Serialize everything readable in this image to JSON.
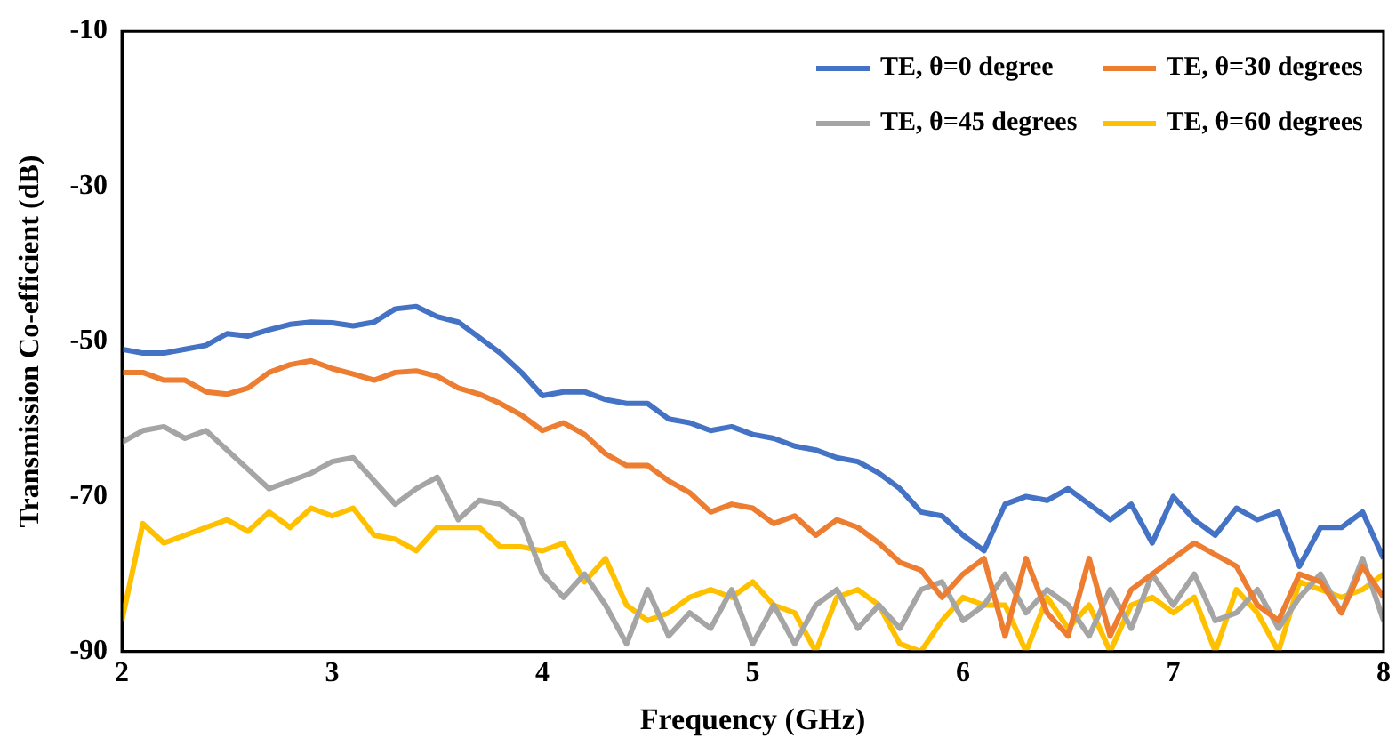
{
  "chart_data": {
    "type": "line",
    "xlabel": "Frequency (GHz)",
    "ylabel": "Transmission Co-efficient (dB)",
    "x": [
      2.0,
      2.1,
      2.2,
      2.3,
      2.4,
      2.5,
      2.6,
      2.7,
      2.8,
      2.9,
      3.0,
      3.1,
      3.2,
      3.3,
      3.4,
      3.5,
      3.6,
      3.7,
      3.8,
      3.9,
      4.0,
      4.1,
      4.2,
      4.3,
      4.4,
      4.5,
      4.6,
      4.7,
      4.8,
      4.9,
      5.0,
      5.1,
      5.2,
      5.3,
      5.4,
      5.5,
      5.6,
      5.7,
      5.8,
      5.9,
      6.0,
      6.1,
      6.2,
      6.3,
      6.4,
      6.5,
      6.6,
      6.7,
      6.8,
      6.9,
      7.0,
      7.1,
      7.2,
      7.3,
      7.4,
      7.5,
      7.6,
      7.7,
      7.8,
      7.9,
      8.0
    ],
    "series": [
      {
        "name": "TE, θ=0 degree",
        "color": "#4472c4",
        "values": [
          -51,
          -51.5,
          -51.5,
          -51,
          -50.5,
          -49,
          -49.3,
          -48.5,
          -47.8,
          -47.5,
          -47.6,
          -48,
          -47.5,
          -45.8,
          -45.5,
          -46.8,
          -47.5,
          -49.5,
          -51.5,
          -54,
          -57,
          -56.5,
          -56.5,
          -57.5,
          -58,
          -58,
          -60,
          -60.5,
          -61.5,
          -61,
          -62,
          -62.5,
          -63.5,
          -64,
          -65,
          -65.5,
          -67,
          -69,
          -72,
          -72.5,
          -75,
          -77,
          -71,
          -70,
          -70.5,
          -69,
          -71,
          -73,
          -71,
          -76,
          -70,
          -73,
          -75,
          -71.5,
          -73,
          -72,
          -79,
          -74,
          -74,
          -72,
          -78
        ]
      },
      {
        "name": "TE, θ=30 degrees",
        "color": "#ed7d31",
        "values": [
          -54,
          -54,
          -55,
          -55,
          -56.5,
          -56.8,
          -56,
          -54,
          -53,
          -52.5,
          -53.5,
          -54.2,
          -55,
          -54,
          -53.8,
          -54.5,
          -56,
          -56.8,
          -58,
          -59.5,
          -61.5,
          -60.5,
          -62,
          -64.5,
          -66,
          -66,
          -68,
          -69.5,
          -72,
          -71,
          -71.5,
          -73.5,
          -72.5,
          -75,
          -73,
          -74,
          -76,
          -78.5,
          -79.5,
          -83,
          -80,
          -78,
          -88,
          -78,
          -85,
          -88,
          -78,
          -88,
          -82,
          -80,
          -78,
          -76,
          -77.5,
          -79,
          -84,
          -86,
          -80,
          -81,
          -85,
          -79,
          -83
        ]
      },
      {
        "name": "TE, θ=45 degrees",
        "color": "#a5a5a5",
        "values": [
          -63,
          -61.5,
          -61,
          -62.5,
          -61.5,
          -64,
          -66.5,
          -69,
          -68,
          -67,
          -65.5,
          -65,
          -68,
          -71,
          -69,
          -67.5,
          -73,
          -70.5,
          -71,
          -73,
          -80,
          -83,
          -80,
          -84,
          -89,
          -82,
          -88,
          -85,
          -87,
          -82,
          -89,
          -84,
          -89,
          -84,
          -82,
          -87,
          -84,
          -87,
          -82,
          -81,
          -86,
          -84,
          -80,
          -85,
          -82,
          -84,
          -88,
          -82,
          -87,
          -80,
          -84,
          -80,
          -86,
          -85,
          -82,
          -87,
          -83,
          -80,
          -85,
          -78,
          -86
        ]
      },
      {
        "name": "TE, θ=60 degrees",
        "color": "#ffc000",
        "values": [
          -86,
          -73.5,
          -76,
          -75,
          -74,
          -73,
          -74.5,
          -72,
          -74,
          -71.5,
          -72.5,
          -71.5,
          -75,
          -75.5,
          -77,
          -74,
          -74,
          -74,
          -76.5,
          -76.5,
          -77,
          -76,
          -81,
          -78,
          -84,
          -86,
          -85,
          -83,
          -82,
          -83,
          -81,
          -84,
          -85,
          -90,
          -83,
          -82,
          -84,
          -89,
          -90,
          -86,
          -83,
          -84,
          -84,
          -90,
          -83,
          -87,
          -84,
          -90,
          -84,
          -83,
          -85,
          -83,
          -90,
          -82,
          -85,
          -90,
          -81,
          -82,
          -83,
          -82,
          -80
        ]
      }
    ],
    "xlim": [
      2,
      8
    ],
    "xticks": [
      2,
      3,
      4,
      5,
      6,
      7,
      8
    ],
    "ylim": [
      -90,
      -10
    ],
    "yticks": [
      -90,
      -70,
      -50,
      -30,
      -10
    ],
    "grid": false,
    "legend": "top right",
    "marker": "none",
    "line_style": "solid"
  }
}
